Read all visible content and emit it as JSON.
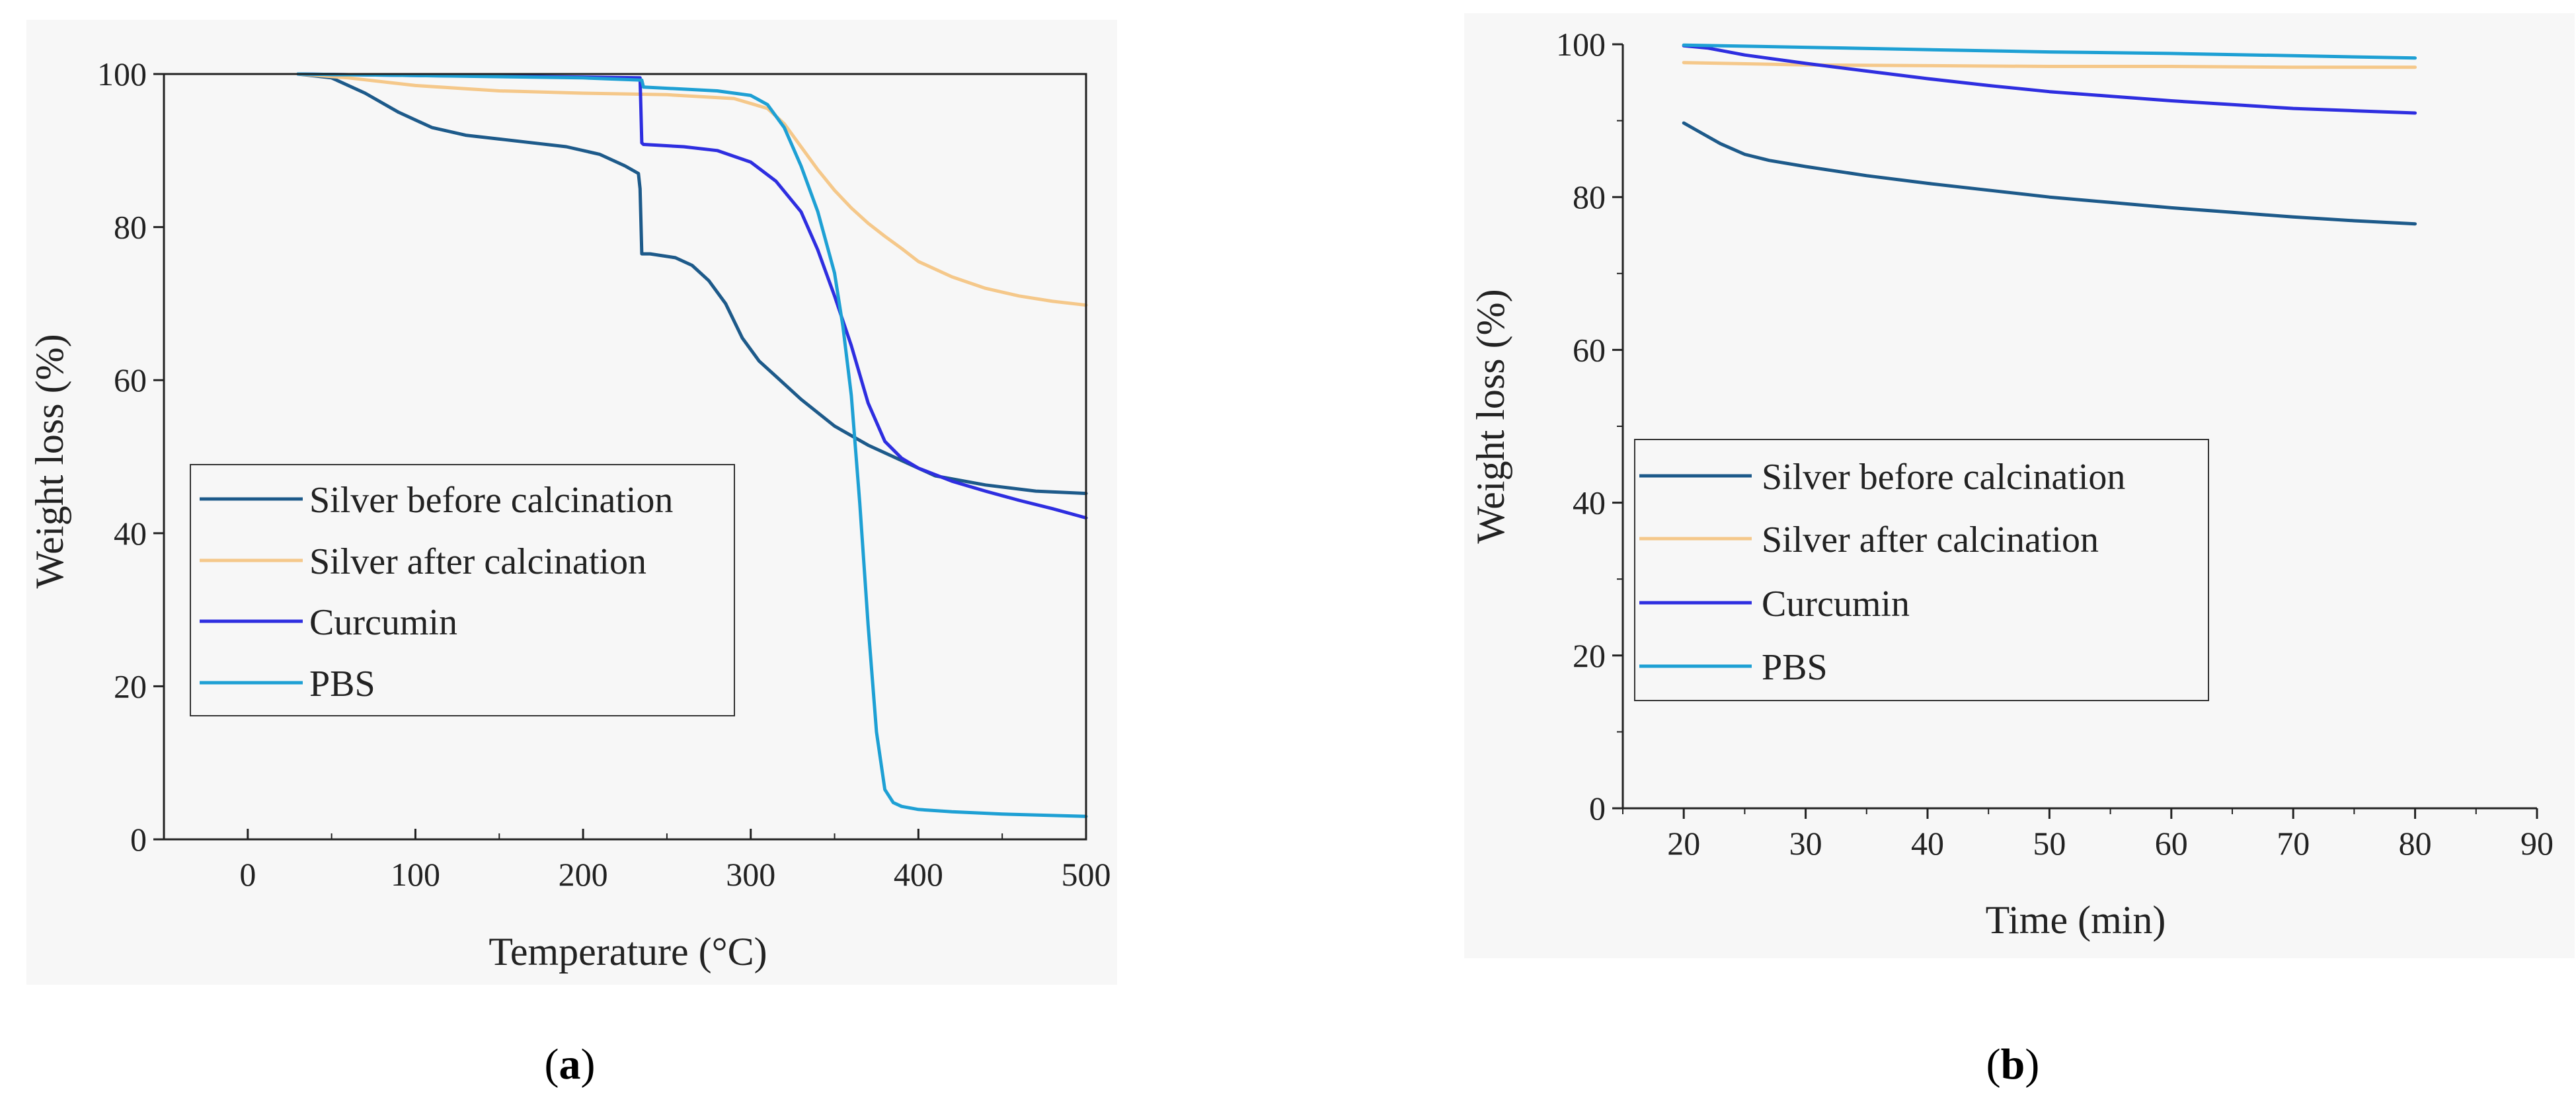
{
  "colors": {
    "silver_before": "#1d5a8a",
    "silver_after": "#f5c88a",
    "curcumin": "#2e2ee0",
    "pbs": "#1ea0d4",
    "axis": "#222222",
    "panel_bg": "#f7f7f7"
  },
  "chart_data": [
    {
      "panel_label": "a",
      "type": "line",
      "title": "",
      "xlabel": "Temperature (°C)",
      "ylabel": "Weight loss (%)",
      "xlim": [
        -50,
        500
      ],
      "ylim": [
        0,
        100
      ],
      "xticks": [
        0,
        100,
        200,
        300,
        400,
        500
      ],
      "yticks": [
        0,
        20,
        40,
        60,
        80,
        100
      ],
      "grid": false,
      "legend_position": "center-left",
      "series": [
        {
          "name": "Silver before calcination",
          "color_key": "silver_before",
          "x": [
            30,
            50,
            70,
            90,
            110,
            130,
            150,
            170,
            190,
            210,
            225,
            233,
            234,
            235,
            240,
            255,
            265,
            275,
            285,
            295,
            305,
            315,
            330,
            350,
            370,
            390,
            410,
            440,
            470,
            500
          ],
          "y": [
            100,
            99.5,
            97.5,
            95,
            93,
            92,
            91.5,
            91,
            90.5,
            89.5,
            88,
            87,
            85,
            76.5,
            76.5,
            76,
            75,
            73,
            70,
            65.5,
            62.5,
            60.5,
            57.5,
            54,
            51.5,
            49.5,
            47.5,
            46.3,
            45.5,
            45.2
          ]
        },
        {
          "name": "Silver after calcination",
          "color_key": "silver_after",
          "x": [
            30,
            60,
            100,
            150,
            200,
            250,
            290,
            310,
            320,
            330,
            340,
            350,
            360,
            370,
            380,
            390,
            400,
            420,
            440,
            460,
            480,
            500
          ],
          "y": [
            100,
            99.5,
            98.5,
            97.8,
            97.5,
            97.3,
            96.8,
            95.5,
            93.5,
            90.5,
            87.5,
            84.8,
            82.5,
            80.5,
            78.8,
            77.2,
            75.5,
            73.5,
            72,
            71,
            70.3,
            69.8
          ]
        },
        {
          "name": "Curcumin",
          "color_key": "curcumin",
          "x": [
            30,
            100,
            200,
            234,
            235,
            236,
            260,
            280,
            300,
            315,
            330,
            340,
            350,
            360,
            370,
            380,
            390,
            400,
            420,
            440,
            460,
            480,
            500
          ],
          "y": [
            100,
            99.8,
            99.6,
            99.5,
            91,
            90.8,
            90.5,
            90,
            88.5,
            86,
            82,
            77,
            71,
            64.5,
            57,
            52,
            49.8,
            48.5,
            46.8,
            45.5,
            44.3,
            43.2,
            42
          ]
        },
        {
          "name": "PBS",
          "color_key": "pbs",
          "x": [
            30,
            100,
            200,
            235,
            236,
            280,
            300,
            310,
            320,
            330,
            340,
            350,
            355,
            360,
            365,
            370,
            375,
            380,
            385,
            390,
            400,
            420,
            450,
            500
          ],
          "y": [
            100,
            99.8,
            99.5,
            99.2,
            98.3,
            97.8,
            97.2,
            96,
            93,
            88,
            82,
            74,
            67,
            58,
            44,
            28,
            14,
            6.5,
            4.8,
            4.3,
            3.9,
            3.6,
            3.3,
            3
          ]
        }
      ]
    },
    {
      "panel_label": "b",
      "type": "line",
      "title": "",
      "xlabel": "Time (min)",
      "ylabel": "Weight loss (%)",
      "xlim": [
        15,
        90
      ],
      "ylim": [
        0,
        100
      ],
      "xticks": [
        20,
        30,
        40,
        50,
        60,
        70,
        80,
        90
      ],
      "yticks": [
        0,
        20,
        40,
        60,
        80,
        100
      ],
      "grid": false,
      "legend_position": "center-left",
      "series": [
        {
          "name": "Silver before calcination",
          "color_key": "silver_before",
          "x": [
            20,
            21,
            23,
            25,
            27,
            30,
            35,
            40,
            45,
            50,
            55,
            60,
            65,
            70,
            75,
            80
          ],
          "y": [
            89.7,
            88.8,
            87,
            85.6,
            84.8,
            84,
            82.8,
            81.8,
            80.9,
            80,
            79.3,
            78.6,
            78,
            77.4,
            76.9,
            76.5
          ]
        },
        {
          "name": "Silver after calcination",
          "color_key": "silver_after",
          "x": [
            20,
            30,
            40,
            50,
            60,
            70,
            80
          ],
          "y": [
            97.6,
            97.3,
            97.2,
            97.1,
            97.1,
            97,
            97
          ]
        },
        {
          "name": "Curcumin",
          "color_key": "curcumin",
          "x": [
            20,
            22,
            25,
            30,
            35,
            40,
            45,
            50,
            55,
            60,
            65,
            70,
            75,
            80
          ],
          "y": [
            99.8,
            99.5,
            98.6,
            97.5,
            96.5,
            95.5,
            94.6,
            93.8,
            93.2,
            92.6,
            92.1,
            91.6,
            91.3,
            91
          ]
        },
        {
          "name": "PBS",
          "color_key": "pbs",
          "x": [
            20,
            30,
            40,
            50,
            60,
            70,
            80
          ],
          "y": [
            99.9,
            99.6,
            99.3,
            99,
            98.8,
            98.5,
            98.2
          ]
        }
      ]
    }
  ]
}
